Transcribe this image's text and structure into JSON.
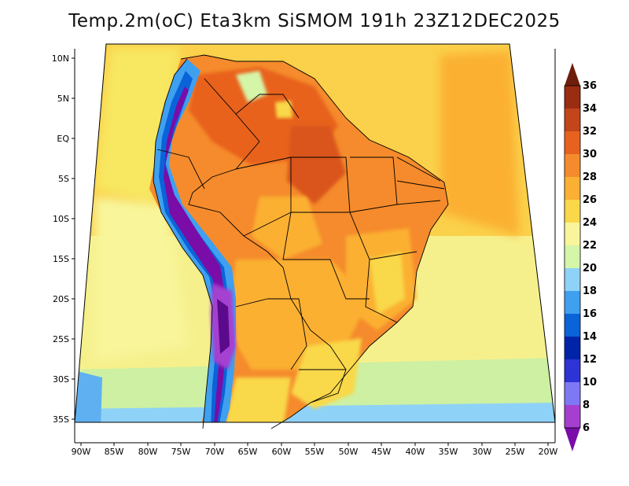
{
  "title": "Temp.2m(oC) Eta3km SiSMOM 191h 23Z12DEC2025",
  "map": {
    "lat_labels": [
      "10N",
      "5N",
      "EQ",
      "5S",
      "10S",
      "15S",
      "20S",
      "25S",
      "30S",
      "35S"
    ],
    "lon_labels": [
      "90W",
      "85W",
      "80W",
      "75W",
      "70W",
      "65W",
      "60W",
      "55W",
      "50W",
      "45W",
      "40W",
      "35W",
      "30W",
      "25W",
      "20W"
    ]
  },
  "colorbar": {
    "levels": [
      "6",
      "8",
      "10",
      "12",
      "14",
      "16",
      "18",
      "20",
      "22",
      "24",
      "26",
      "28",
      "30",
      "32",
      "34",
      "36"
    ],
    "colors": [
      "#7a0ca8",
      "#a63fd0",
      "#7f78f5",
      "#2e33d6",
      "#0024a8",
      "#0a63d8",
      "#3fa0ef",
      "#8fd2f7",
      "#d5f5a8",
      "#f8f59a",
      "#f9d84a",
      "#fbb033",
      "#f58b2c",
      "#e8621f",
      "#c3451a",
      "#9a2c12",
      "#6e1e0c"
    ]
  }
}
